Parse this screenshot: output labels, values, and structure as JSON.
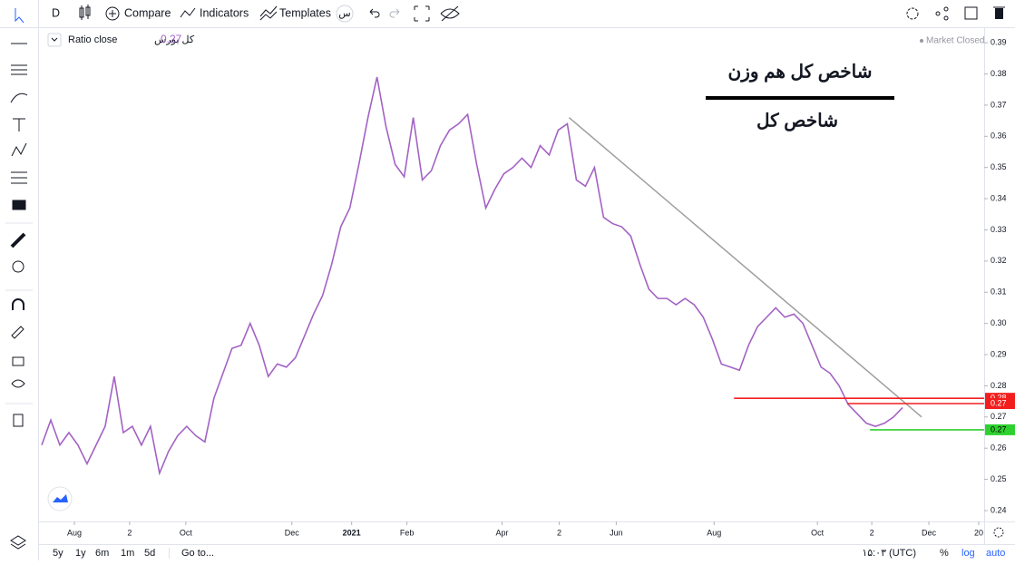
{
  "toolbar": {
    "interval": "D",
    "compare": "Compare",
    "indicators": "Indicators",
    "templates": "Templates",
    "language": "س"
  },
  "chart_data": {
    "type": "line",
    "legend": {
      "name": "Ratio close",
      "symbol": "کل بورس",
      "last_value": 0.27
    },
    "status": "Market Closed",
    "annotations": [
      "شاخص کل هم وزن",
      "شاخص کل"
    ],
    "series": [
      {
        "name": "Ratio close",
        "color": "#a362c4",
        "values": [
          0.261,
          0.269,
          0.261,
          0.265,
          0.261,
          0.255,
          0.261,
          0.267,
          0.283,
          0.265,
          0.267,
          0.261,
          0.267,
          0.252,
          0.259,
          0.264,
          0.267,
          0.264,
          0.262,
          0.276,
          0.284,
          0.292,
          0.293,
          0.3,
          0.293,
          0.283,
          0.287,
          0.286,
          0.289,
          0.296,
          0.303,
          0.309,
          0.319,
          0.331,
          0.337,
          0.351,
          0.366,
          0.379,
          0.363,
          0.351,
          0.347,
          0.366,
          0.346,
          0.349,
          0.357,
          0.362,
          0.364,
          0.367,
          0.351,
          0.337,
          0.343,
          0.348,
          0.35,
          0.353,
          0.35,
          0.357,
          0.354,
          0.362,
          0.364,
          0.346,
          0.344,
          0.35,
          0.334,
          0.332,
          0.331,
          0.328,
          0.319,
          0.311,
          0.308,
          0.308,
          0.306,
          0.308,
          0.306,
          0.302,
          0.295,
          0.287,
          0.286,
          0.285,
          0.293,
          0.299,
          0.302,
          0.305,
          0.302,
          0.303,
          0.3,
          0.293,
          0.286,
          0.284,
          0.28,
          0.274,
          0.271,
          0.268,
          0.267,
          0.268,
          0.27,
          0.273
        ]
      }
    ],
    "trendline": {
      "color": "#9e9e9e",
      "x": [
        58.2,
        97.1
      ],
      "values": [
        0.366,
        0.27
      ]
    },
    "horizontal_lines": {
      "values": [
        0.276,
        0.2743,
        0.2659
      ],
      "value_labels": [
        "0.28",
        "0.27",
        "0.27"
      ],
      "colors": [
        "#f21e1e",
        "#f21e1e",
        "#2fd12f"
      ],
      "x_start": [
        76.4,
        88.9,
        91.4
      ]
    },
    "xlim": [
      0,
      104
    ],
    "ylim": [
      0.2365,
      0.3944
    ],
    "xticks": [
      {
        "value": 3.6,
        "label": "Aug"
      },
      {
        "value": 9.7,
        "label": "2"
      },
      {
        "value": 15.9,
        "label": "Oct"
      },
      {
        "value": 27.6,
        "label": "Dec"
      },
      {
        "value": 34.2,
        "label": "2021"
      },
      {
        "value": 40.3,
        "label": "Feb"
      },
      {
        "value": 50.8,
        "label": "Apr"
      },
      {
        "value": 57.1,
        "label": "2"
      },
      {
        "value": 63.4,
        "label": "Jun"
      },
      {
        "value": 74.2,
        "label": "Aug"
      },
      {
        "value": 85.6,
        "label": "Oct"
      },
      {
        "value": 91.6,
        "label": "2"
      },
      {
        "value": 97.9,
        "label": "Dec"
      },
      {
        "value": 103.4,
        "label": "20"
      }
    ],
    "yticks": [
      0.24,
      0.25,
      0.26,
      0.27,
      0.28,
      0.29,
      {
        "value": 0.3,
        "label": "0.30"
      },
      0.31,
      0.32,
      0.33,
      0.34,
      0.35,
      0.36,
      0.37,
      0.38,
      0.39
    ]
  },
  "bottom_bar": {
    "ranges": [
      "5y",
      "1y",
      "6m",
      "1m",
      "5d"
    ],
    "goto": "Go to...",
    "time": "۱۵:۰۳ (UTC)",
    "percent": "%",
    "log": "log",
    "auto": "auto"
  }
}
